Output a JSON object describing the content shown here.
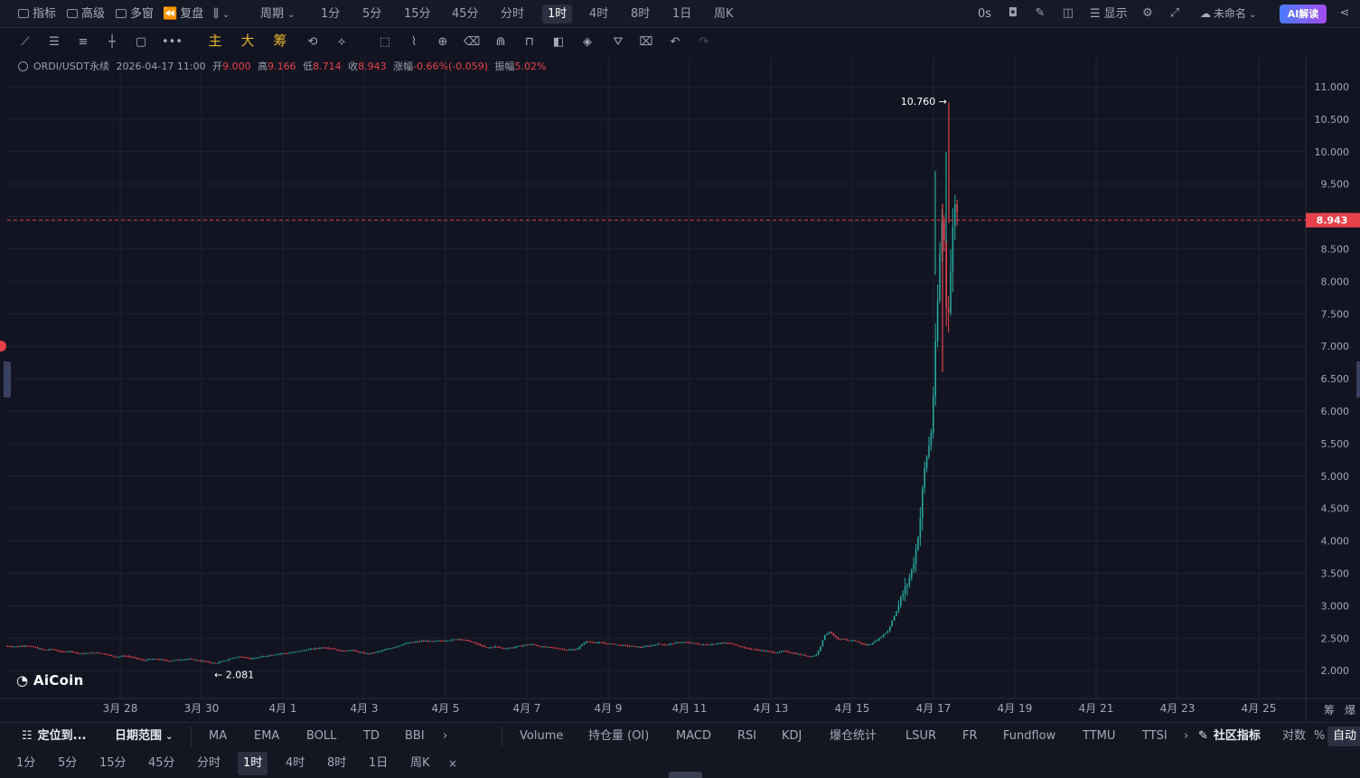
{
  "topbar": {
    "left_items": [
      {
        "label": "指标",
        "icon": "indicator-icon"
      },
      {
        "label": "高级",
        "icon": "advanced-icon"
      },
      {
        "label": "多窗",
        "icon": "multi-window-icon"
      },
      {
        "label": "复盘",
        "icon": "replay-icon"
      },
      {
        "label": "",
        "icon": "chart-type-icon"
      },
      {
        "label": "周期",
        "icon": "chevron-down-icon"
      }
    ],
    "periods": [
      "1分",
      "5分",
      "15分",
      "45分",
      "分时",
      "1时",
      "4时",
      "8时",
      "1日",
      "周K"
    ],
    "active_period": "1时",
    "countdown": "0s",
    "show_label": "显示",
    "layout_name": "未命名",
    "ai_button": "AI解读"
  },
  "toolbar": {
    "gold_tools": [
      "主",
      "大",
      "筹"
    ]
  },
  "ohlc": {
    "symbol": "ORDI/USDT永续",
    "datetime": "2026-04-17 11:00",
    "open_label": "开",
    "open": "9.000",
    "high_label": "高",
    "high": "9.166",
    "low_label": "低",
    "low": "8.714",
    "close_label": "收",
    "close": "8.943",
    "change_label": "涨幅",
    "change": "-0.66%(-0.059)",
    "amplitude_label": "振幅",
    "amplitude": "5.02%"
  },
  "chart_data": {
    "type": "candlestick",
    "y_ticks": [
      "11.000",
      "10.500",
      "10.000",
      "9.500",
      "9.000",
      "8.500",
      "8.000",
      "7.500",
      "7.000",
      "6.500",
      "6.000",
      "5.500",
      "5.000",
      "4.500",
      "4.000",
      "3.500",
      "3.000",
      "2.500",
      "2.000"
    ],
    "ylim": [
      1.8,
      11.3
    ],
    "x_ticks": [
      "3月 28",
      "3月 30",
      "4月 1",
      "4月 3",
      "4月 5",
      "4月 7",
      "4月 9",
      "4月 11",
      "4月 13",
      "4月 15",
      "4月 17",
      "4月 19",
      "4月 21",
      "4月 23",
      "4月 25"
    ],
    "current_price": "8.943",
    "max_label": "10.760 →",
    "min_label": "← 2.081",
    "colors": {
      "up": "#26a69a",
      "down": "#e5414b",
      "price_line": "#e5414b"
    },
    "path_points": [
      [
        0,
        2.38
      ],
      [
        10,
        2.37
      ],
      [
        20,
        2.39
      ],
      [
        30,
        2.36
      ],
      [
        40,
        2.32
      ],
      [
        50,
        2.33
      ],
      [
        60,
        2.29
      ],
      [
        70,
        2.3
      ],
      [
        80,
        2.26
      ],
      [
        90,
        2.27
      ],
      [
        100,
        2.28
      ],
      [
        110,
        2.25
      ],
      [
        120,
        2.21
      ],
      [
        130,
        2.23
      ],
      [
        140,
        2.2
      ],
      [
        150,
        2.16
      ],
      [
        160,
        2.18
      ],
      [
        170,
        2.17
      ],
      [
        180,
        2.15
      ],
      [
        190,
        2.17
      ],
      [
        200,
        2.18
      ],
      [
        210,
        2.16
      ],
      [
        220,
        2.14
      ],
      [
        230,
        2.11
      ],
      [
        240,
        2.15
      ],
      [
        250,
        2.2
      ],
      [
        260,
        2.22
      ],
      [
        270,
        2.18
      ],
      [
        280,
        2.21
      ],
      [
        290,
        2.24
      ],
      [
        300,
        2.26
      ],
      [
        310,
        2.27
      ],
      [
        320,
        2.29
      ],
      [
        330,
        2.32
      ],
      [
        340,
        2.34
      ],
      [
        350,
        2.36
      ],
      [
        360,
        2.34
      ],
      [
        370,
        2.3
      ],
      [
        380,
        2.32
      ],
      [
        390,
        2.28
      ],
      [
        400,
        2.26
      ],
      [
        410,
        2.29
      ],
      [
        420,
        2.33
      ],
      [
        430,
        2.37
      ],
      [
        440,
        2.42
      ],
      [
        450,
        2.44
      ],
      [
        460,
        2.46
      ],
      [
        470,
        2.45
      ],
      [
        480,
        2.46
      ],
      [
        490,
        2.47
      ],
      [
        500,
        2.49
      ],
      [
        510,
        2.46
      ],
      [
        520,
        2.41
      ],
      [
        530,
        2.35
      ],
      [
        540,
        2.37
      ],
      [
        550,
        2.34
      ],
      [
        560,
        2.36
      ],
      [
        570,
        2.39
      ],
      [
        580,
        2.41
      ],
      [
        590,
        2.37
      ],
      [
        600,
        2.36
      ],
      [
        610,
        2.34
      ],
      [
        620,
        2.32
      ],
      [
        630,
        2.33
      ],
      [
        640,
        2.45
      ],
      [
        650,
        2.44
      ],
      [
        660,
        2.42
      ],
      [
        670,
        2.41
      ],
      [
        680,
        2.39
      ],
      [
        690,
        2.38
      ],
      [
        700,
        2.36
      ],
      [
        710,
        2.38
      ],
      [
        720,
        2.41
      ],
      [
        730,
        2.4
      ],
      [
        740,
        2.43
      ],
      [
        750,
        2.44
      ],
      [
        760,
        2.42
      ],
      [
        770,
        2.4
      ],
      [
        780,
        2.41
      ],
      [
        790,
        2.43
      ],
      [
        800,
        2.42
      ],
      [
        810,
        2.38
      ],
      [
        820,
        2.34
      ],
      [
        830,
        2.32
      ],
      [
        840,
        2.3
      ],
      [
        850,
        2.28
      ],
      [
        860,
        2.3
      ],
      [
        870,
        2.27
      ],
      [
        880,
        2.24
      ],
      [
        890,
        2.22
      ],
      [
        895,
        2.24
      ],
      [
        900,
        2.38
      ],
      [
        905,
        2.56
      ],
      [
        910,
        2.6
      ],
      [
        915,
        2.53
      ],
      [
        920,
        2.47
      ],
      [
        925,
        2.49
      ],
      [
        930,
        2.46
      ],
      [
        935,
        2.47
      ],
      [
        940,
        2.45
      ],
      [
        945,
        2.42
      ],
      [
        950,
        2.39
      ],
      [
        955,
        2.41
      ],
      [
        960,
        2.45
      ],
      [
        965,
        2.5
      ],
      [
        970,
        2.56
      ],
      [
        975,
        2.62
      ],
      [
        980,
        2.8
      ],
      [
        985,
        2.95
      ],
      [
        990,
        3.15
      ],
      [
        995,
        3.3
      ],
      [
        1000,
        3.5
      ],
      [
        1005,
        3.8
      ],
      [
        1010,
        4.3
      ],
      [
        1013,
        4.8
      ],
      [
        1016,
        5.2
      ],
      [
        1019,
        5.4
      ],
      [
        1022,
        5.6
      ],
      [
        1025,
        6.3
      ],
      [
        1028,
        7.2
      ],
      [
        1031,
        8.1
      ],
      [
        1034,
        9.0
      ],
      [
        1037,
        8.6
      ],
      [
        1040,
        7.3
      ],
      [
        1043,
        7.9
      ],
      [
        1046,
        8.7
      ],
      [
        1049,
        9.3
      ],
      [
        1052,
        8.943
      ]
    ],
    "y_markers": [
      10.76,
      8.943,
      2.081
    ]
  },
  "brand": "AiCoin",
  "corner_labels": [
    "筹",
    "爆"
  ],
  "indicator_bar": {
    "locate": "定位到...",
    "date_range": "日期范围",
    "main_indicators": [
      "MA",
      "EMA",
      "BOLL",
      "TD",
      "BBI"
    ],
    "sub_indicators": [
      "Volume",
      "持仓量 (OI)",
      "MACD",
      "RSI",
      "KDJ",
      "爆仓统计",
      "LSUR",
      "FR",
      "Fundflow",
      "TTMU",
      "TTSI"
    ],
    "community": "社区指标",
    "log": "对数",
    "percent": "%",
    "auto": "自动"
  },
  "period_bar": {
    "periods": [
      "1分",
      "5分",
      "15分",
      "45分",
      "分时",
      "1时",
      "4时",
      "8时",
      "1日",
      "周K"
    ],
    "active": "1时",
    "close": "×"
  }
}
